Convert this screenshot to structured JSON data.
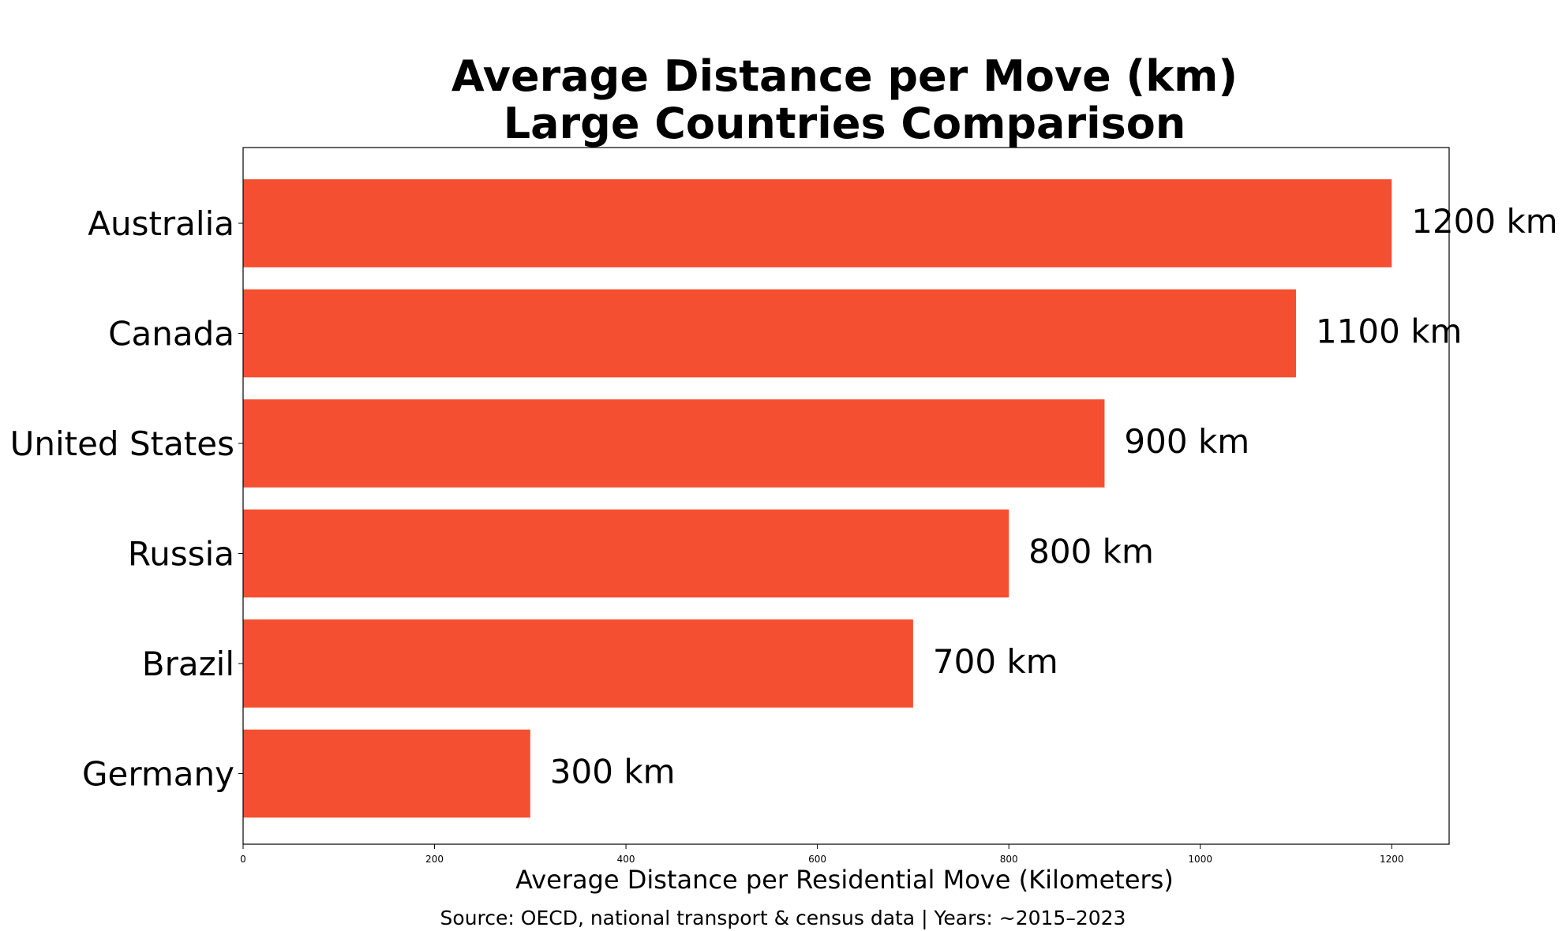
{
  "chart_data": {
    "type": "bar",
    "orientation": "horizontal",
    "title_lines": [
      "Average Distance per Move (km)",
      "Large Countries Comparison"
    ],
    "categories": [
      "Australia",
      "Canada",
      "United States",
      "Russia",
      "Brazil",
      "Germany"
    ],
    "values": [
      1200,
      1100,
      900,
      800,
      700,
      300
    ],
    "value_labels": [
      "1200 km",
      "1100 km",
      "900 km",
      "800 km",
      "700 km",
      "300 km"
    ],
    "xlabel": "Average Distance per Residential Move (Kilometers)",
    "ylabel": "",
    "xlim": [
      0,
      1260
    ],
    "xticks": [
      0,
      200,
      400,
      600,
      800,
      1000,
      1200
    ],
    "xtick_labels": [
      "0",
      "200",
      "400",
      "600",
      "800",
      "1000",
      "1200"
    ],
    "grid": false,
    "legend": false,
    "bar_color": "#f44f30"
  },
  "source_note": "Source: OECD, national transport & census data | Years: ~2015–2023"
}
